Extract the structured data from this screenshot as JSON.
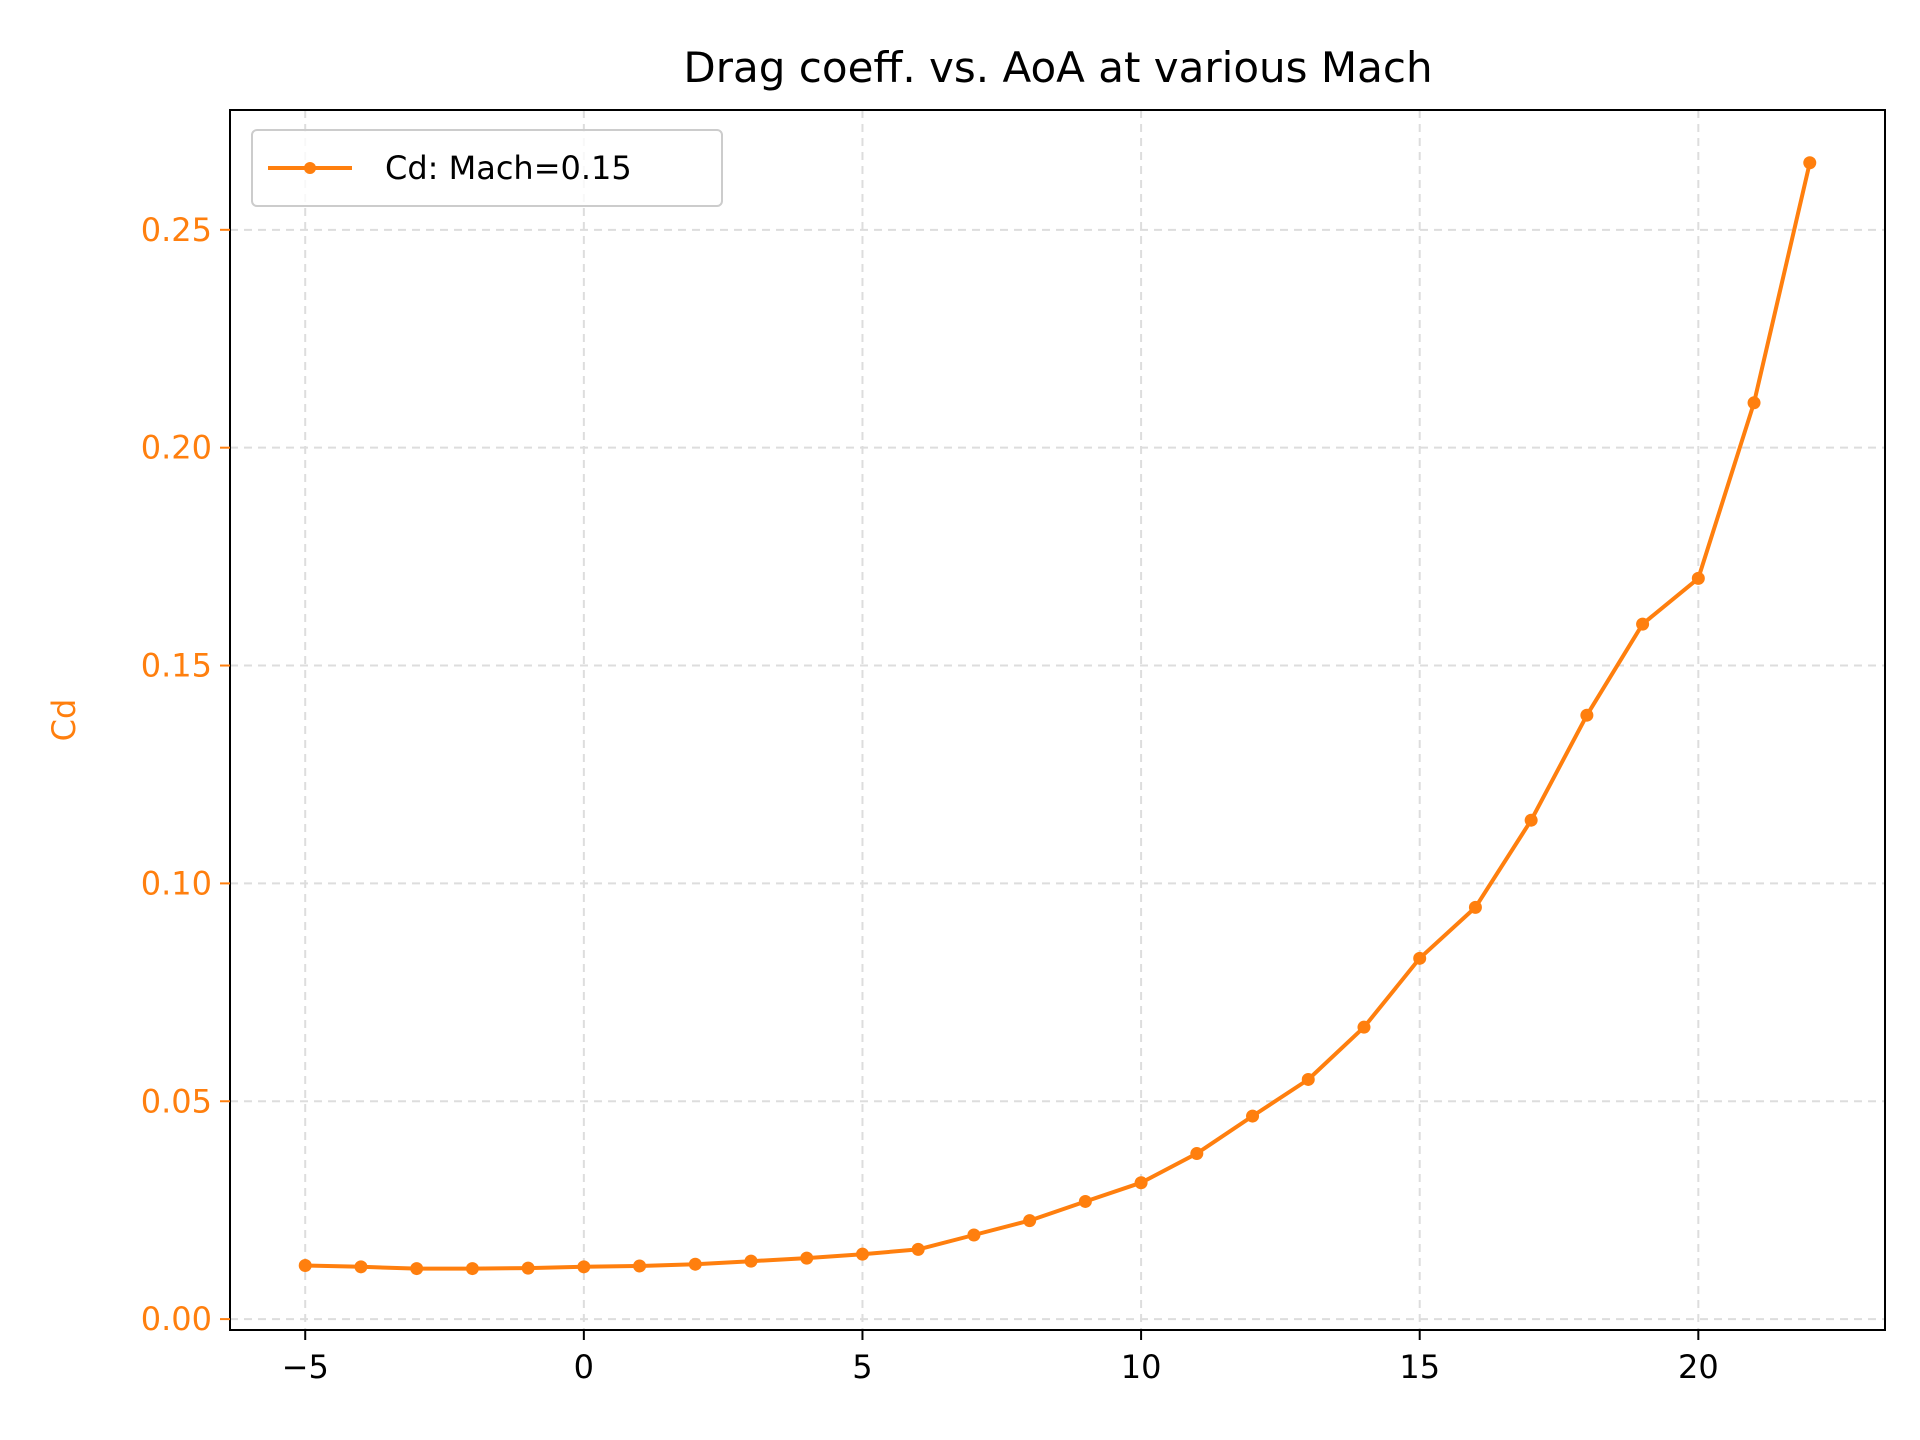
{
  "chart_data": {
    "type": "line",
    "title": "Drag coeff. vs. AoA at various Mach",
    "xlabel": "",
    "ylabel": "Cd",
    "xlim": [
      -6.35,
      23.35
    ],
    "ylim": [
      -0.0025,
      0.2775
    ],
    "x_ticks": [
      -5,
      0,
      5,
      10,
      15,
      20
    ],
    "x_tick_labels": [
      "−5",
      "0",
      "5",
      "10",
      "15",
      "20"
    ],
    "y_ticks": [
      0.0,
      0.05,
      0.1,
      0.15,
      0.2,
      0.25
    ],
    "y_tick_labels": [
      "0.00",
      "0.05",
      "0.10",
      "0.15",
      "0.20",
      "0.25"
    ],
    "grid": true,
    "legend_position": "top-left",
    "series": [
      {
        "name": "Cd: Mach=0.15",
        "color": "#ff7f0e",
        "x": [
          -5,
          -4,
          -3,
          -2,
          -1,
          0,
          1,
          2,
          3,
          4,
          5,
          6,
          7,
          8,
          9,
          10,
          11,
          12,
          13,
          14,
          15,
          16,
          17,
          18,
          19,
          20,
          21,
          22
        ],
        "y": [
          0.0123,
          0.012,
          0.0116,
          0.0116,
          0.0117,
          0.012,
          0.0122,
          0.0126,
          0.0133,
          0.014,
          0.0149,
          0.016,
          0.0193,
          0.0226,
          0.027,
          0.0313,
          0.038,
          0.0466,
          0.055,
          0.067,
          0.0828,
          0.0945,
          0.1145,
          0.1386,
          0.1595,
          0.17,
          0.2103,
          0.2654
        ]
      }
    ]
  }
}
